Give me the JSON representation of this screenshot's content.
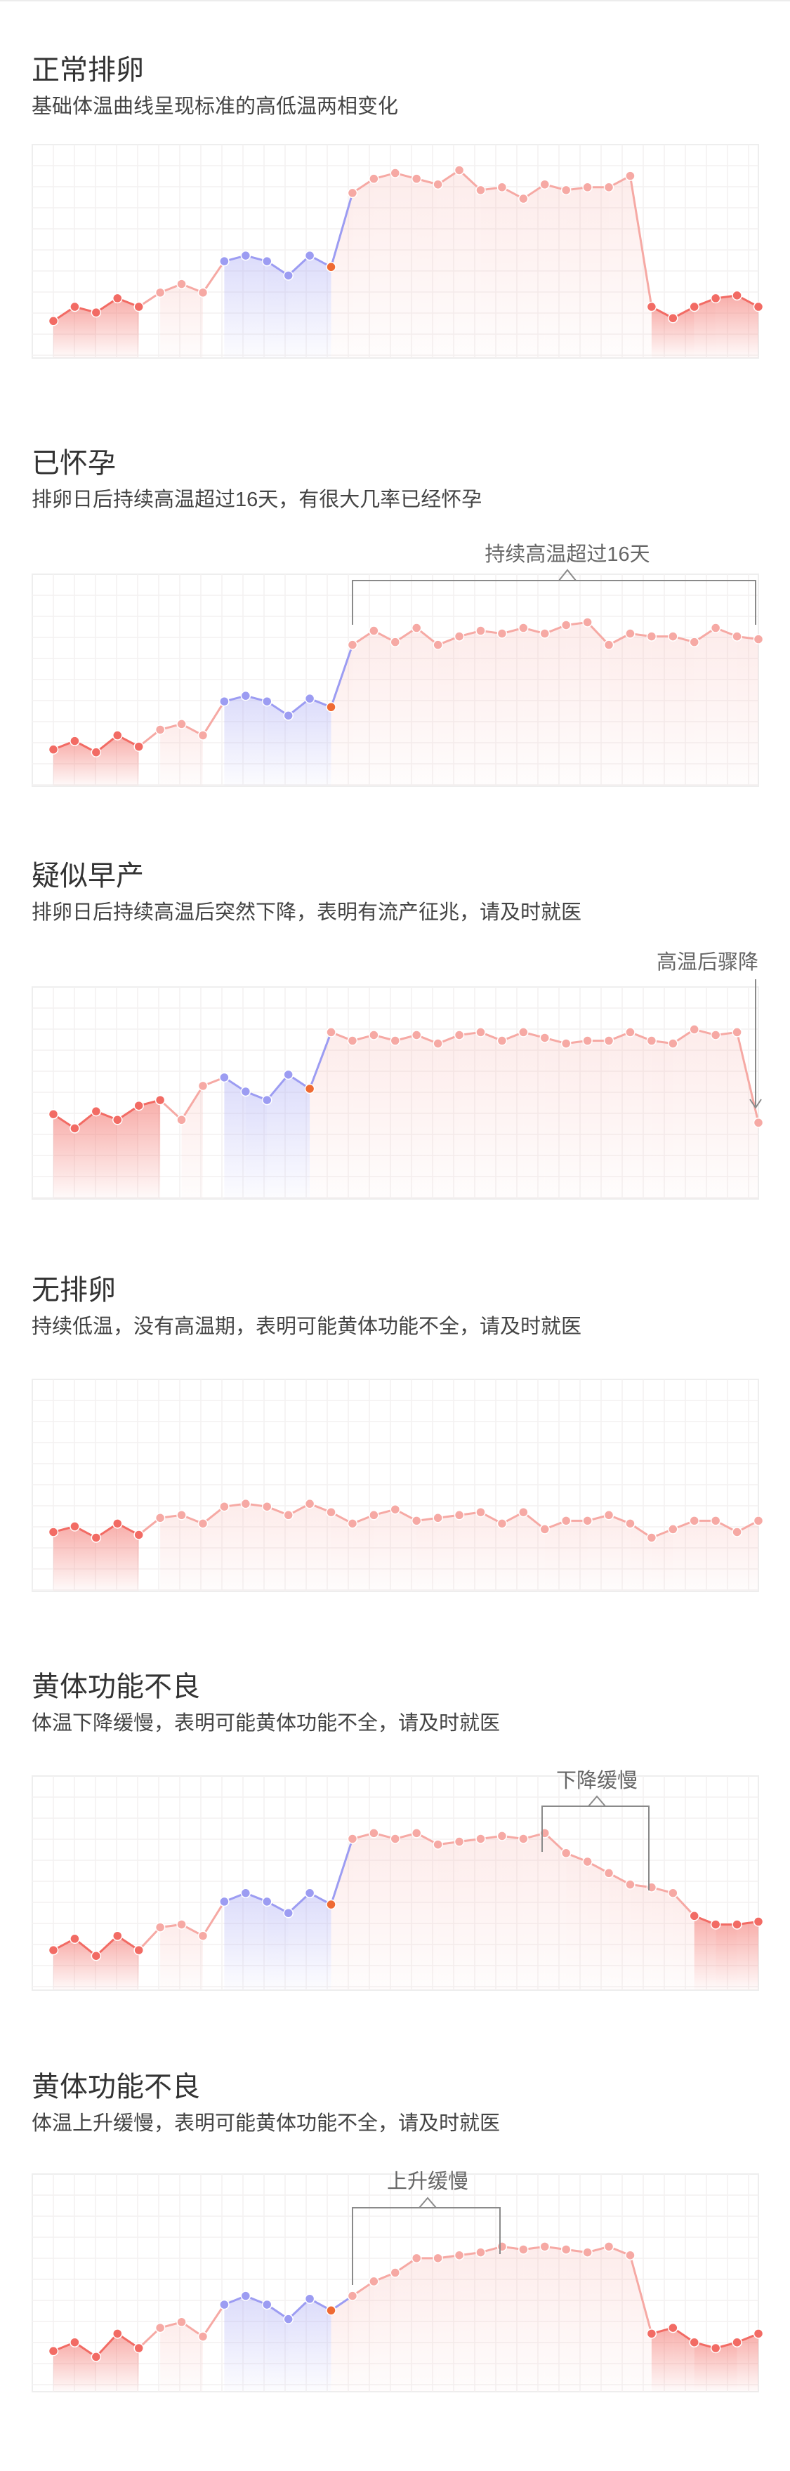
{
  "colors": {
    "low": "#f26b64",
    "low_light": "#f6a9a4",
    "follicular": "#9c9cf2",
    "ovulation": "#ef6a33",
    "high": "#f6a9a4"
  },
  "sections": [
    {
      "title": "正常排卵",
      "subtitle": "基础体温曲线呈现标准的高低温两相变化"
    },
    {
      "title": "已怀孕",
      "subtitle": "排卵日后持续高温超过16天，有很大几率已经怀孕",
      "callout": "持续高温超过16天"
    },
    {
      "title": "疑似早产",
      "subtitle": "排卵日后持续高温后突然下降，表明有流产征兆，请及时就医",
      "callout": "高温后骤降"
    },
    {
      "title": "无排卵",
      "subtitle": "持续低温，没有高温期，表明可能黄体功能不全，请及时就医"
    },
    {
      "title": "黄体功能不良",
      "subtitle": "体温下降缓慢，表明可能黄体功能不全，请及时就医",
      "callout": "下降缓慢"
    },
    {
      "title": "黄体功能不良",
      "subtitle": "体温上升缓慢，表明可能黄体功能不全，请及时就医",
      "callout": "上升缓慢"
    }
  ],
  "chart_data": [
    {
      "type": "line",
      "x": [
        1,
        2,
        3,
        4,
        5,
        6,
        7,
        8,
        9,
        10,
        11,
        12,
        13,
        14,
        15,
        16,
        17,
        18,
        19,
        20,
        21,
        22,
        23,
        24,
        25,
        26,
        27,
        28,
        29,
        30,
        31,
        32,
        33,
        34
      ],
      "values": [
        0.06,
        0.16,
        0.12,
        0.22,
        0.16,
        0.26,
        0.32,
        0.26,
        0.48,
        0.52,
        0.48,
        0.38,
        0.52,
        0.44,
        0.96,
        1.06,
        1.1,
        1.06,
        1.02,
        1.12,
        0.98,
        1.0,
        0.92,
        1.02,
        0.98,
        1.0,
        1.0,
        1.08,
        0.16,
        0.08,
        0.16,
        0.22,
        0.24,
        0.16
      ],
      "phases": [
        "low",
        "low",
        "low",
        "low",
        "low",
        "low_light",
        "low_light",
        "low_light",
        "follicular",
        "follicular",
        "follicular",
        "follicular",
        "follicular",
        "ovulation",
        "high",
        "high",
        "high",
        "high",
        "high",
        "high",
        "high",
        "high",
        "high",
        "high",
        "high",
        "high",
        "high",
        "high",
        "low",
        "low",
        "low",
        "low",
        "low",
        "low"
      ],
      "ylim": [
        -0.2,
        1.3
      ]
    },
    {
      "type": "line",
      "x": [
        1,
        2,
        3,
        4,
        5,
        6,
        7,
        8,
        9,
        10,
        11,
        12,
        13,
        14,
        15,
        16,
        17,
        18,
        19,
        20,
        21,
        22,
        23,
        24,
        25,
        26,
        27,
        28,
        29,
        30,
        31,
        32,
        33,
        34
      ],
      "values": [
        0.06,
        0.12,
        0.04,
        0.16,
        0.08,
        0.2,
        0.24,
        0.16,
        0.4,
        0.44,
        0.4,
        0.3,
        0.42,
        0.36,
        0.8,
        0.9,
        0.82,
        0.92,
        0.8,
        0.86,
        0.9,
        0.88,
        0.92,
        0.88,
        0.94,
        0.96,
        0.8,
        0.88,
        0.86,
        0.86,
        0.82,
        0.92,
        0.86,
        0.84
      ],
      "phases": [
        "low",
        "low",
        "low",
        "low",
        "low",
        "low_light",
        "low_light",
        "low_light",
        "follicular",
        "follicular",
        "follicular",
        "follicular",
        "follicular",
        "ovulation",
        "high",
        "high",
        "high",
        "high",
        "high",
        "high",
        "high",
        "high",
        "high",
        "high",
        "high",
        "high",
        "high",
        "high",
        "high",
        "high",
        "high",
        "high",
        "high",
        "high"
      ],
      "ylim": [
        -0.2,
        1.3
      ]
    },
    {
      "type": "line",
      "x": [
        1,
        2,
        3,
        4,
        5,
        6,
        7,
        8,
        9,
        10,
        11,
        12,
        13,
        14,
        15,
        16,
        17,
        18,
        19,
        20,
        21,
        22,
        23,
        24,
        25,
        26,
        27,
        28,
        29,
        30,
        31,
        32,
        33,
        34
      ],
      "values": [
        0.4,
        0.3,
        0.42,
        0.36,
        0.46,
        0.5,
        0.36,
        0.6,
        0.66,
        0.56,
        0.5,
        0.68,
        0.58,
        0.98,
        0.92,
        0.96,
        0.92,
        0.96,
        0.9,
        0.96,
        0.98,
        0.92,
        0.98,
        0.94,
        0.9,
        0.92,
        0.92,
        0.98,
        0.92,
        0.9,
        1.0,
        0.96,
        0.98,
        0.34
      ],
      "phases": [
        "low",
        "low",
        "low",
        "low",
        "low",
        "low",
        "low_light",
        "low_light",
        "follicular",
        "follicular",
        "follicular",
        "follicular",
        "ovulation",
        "high",
        "high",
        "high",
        "high",
        "high",
        "high",
        "high",
        "high",
        "high",
        "high",
        "high",
        "high",
        "high",
        "high",
        "high",
        "high",
        "high",
        "high",
        "high",
        "high",
        "high"
      ],
      "ylim": [
        -0.2,
        1.3
      ]
    },
    {
      "type": "line",
      "x": [
        1,
        2,
        3,
        4,
        5,
        6,
        7,
        8,
        9,
        10,
        11,
        12,
        13,
        14,
        15,
        16,
        17,
        18,
        19,
        20,
        21,
        22,
        23,
        24,
        25,
        26,
        27,
        28,
        29,
        30,
        31,
        32,
        33,
        34
      ],
      "values": [
        0.22,
        0.26,
        0.18,
        0.28,
        0.2,
        0.32,
        0.34,
        0.28,
        0.4,
        0.42,
        0.4,
        0.34,
        0.42,
        0.36,
        0.28,
        0.34,
        0.38,
        0.3,
        0.32,
        0.34,
        0.36,
        0.28,
        0.36,
        0.24,
        0.3,
        0.3,
        0.34,
        0.28,
        0.18,
        0.24,
        0.3,
        0.3,
        0.22,
        0.3
      ],
      "phases": [
        "low",
        "low",
        "low",
        "low",
        "low",
        "low_light",
        "low_light",
        "low_light",
        "low_light",
        "low_light",
        "low_light",
        "low_light",
        "low_light",
        "low_light",
        "low_light",
        "low_light",
        "low_light",
        "low_light",
        "low_light",
        "low_light",
        "low_light",
        "low_light",
        "low_light",
        "low_light",
        "low_light",
        "low_light",
        "low_light",
        "low_light",
        "low_light",
        "low_light",
        "low_light",
        "low_light",
        "low_light",
        "low_light"
      ],
      "ylim": [
        -0.2,
        1.3
      ]
    },
    {
      "type": "line",
      "x": [
        1,
        2,
        3,
        4,
        5,
        6,
        7,
        8,
        9,
        10,
        11,
        12,
        13,
        14,
        15,
        16,
        17,
        18,
        19,
        20,
        21,
        22,
        23,
        24,
        25,
        26,
        27,
        28,
        29,
        30,
        31,
        32,
        33,
        34
      ],
      "values": [
        0.08,
        0.16,
        0.04,
        0.18,
        0.08,
        0.24,
        0.26,
        0.18,
        0.42,
        0.48,
        0.42,
        0.34,
        0.48,
        0.4,
        0.86,
        0.9,
        0.86,
        0.9,
        0.82,
        0.84,
        0.86,
        0.88,
        0.86,
        0.9,
        0.76,
        0.7,
        0.62,
        0.54,
        0.52,
        0.48,
        0.32,
        0.26,
        0.26,
        0.28
      ],
      "phases": [
        "low",
        "low",
        "low",
        "low",
        "low",
        "low_light",
        "low_light",
        "low_light",
        "follicular",
        "follicular",
        "follicular",
        "follicular",
        "follicular",
        "ovulation",
        "high",
        "high",
        "high",
        "high",
        "high",
        "high",
        "high",
        "high",
        "high",
        "high",
        "high",
        "high",
        "high",
        "high",
        "high",
        "high",
        "low",
        "low",
        "low",
        "low"
      ],
      "ylim": [
        -0.2,
        1.3
      ]
    },
    {
      "type": "line",
      "x": [
        1,
        2,
        3,
        4,
        5,
        6,
        7,
        8,
        9,
        10,
        11,
        12,
        13,
        14,
        15,
        16,
        17,
        18,
        19,
        20,
        21,
        22,
        23,
        24,
        25,
        26,
        27,
        28,
        29,
        30,
        31,
        32,
        33,
        34
      ],
      "values": [
        0.08,
        0.14,
        0.04,
        0.2,
        0.1,
        0.24,
        0.28,
        0.18,
        0.4,
        0.46,
        0.4,
        0.3,
        0.44,
        0.36,
        0.46,
        0.56,
        0.62,
        0.72,
        0.72,
        0.74,
        0.76,
        0.8,
        0.78,
        0.8,
        0.78,
        0.76,
        0.8,
        0.74,
        0.2,
        0.24,
        0.14,
        0.1,
        0.14,
        0.2
      ],
      "phases": [
        "low",
        "low",
        "low",
        "low",
        "low",
        "low_light",
        "low_light",
        "low_light",
        "follicular",
        "follicular",
        "follicular",
        "follicular",
        "follicular",
        "ovulation",
        "high",
        "high",
        "high",
        "high",
        "high",
        "high",
        "high",
        "high",
        "high",
        "high",
        "high",
        "high",
        "high",
        "high",
        "low",
        "low",
        "low",
        "low",
        "low",
        "low"
      ],
      "ylim": [
        -0.2,
        1.3
      ]
    }
  ]
}
